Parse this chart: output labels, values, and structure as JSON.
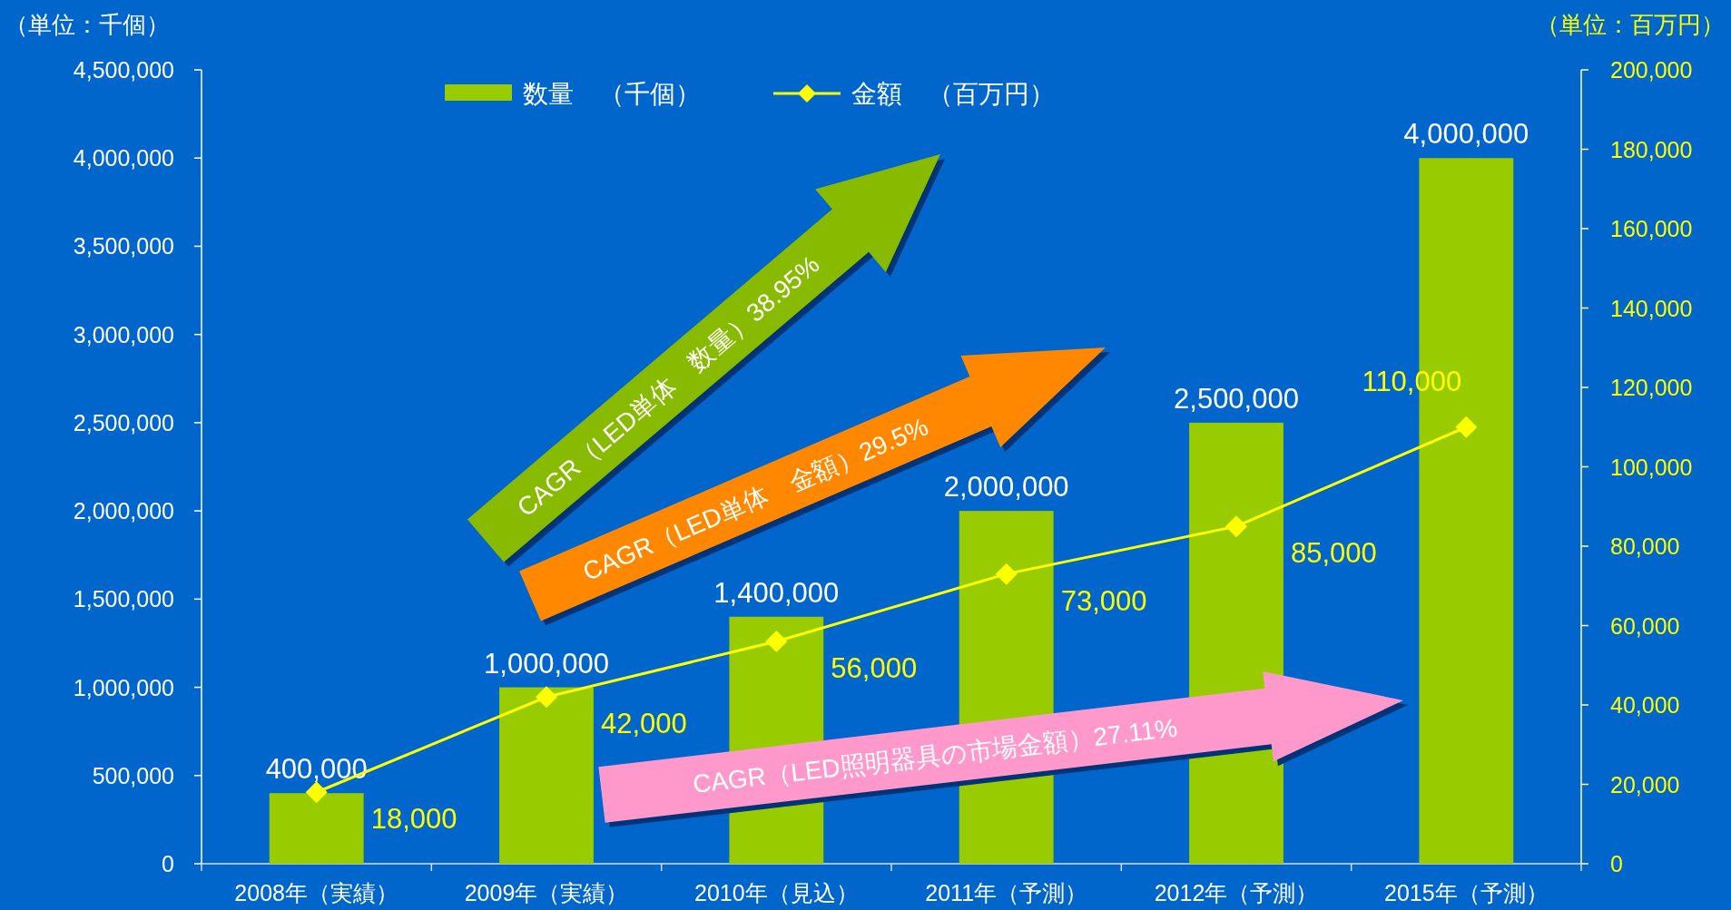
{
  "chart_data": {
    "type": "bar",
    "ylabel": "（単位：千個）",
    "y2label": "（単位：百万円）",
    "categories": [
      "2008年（実績）",
      "2009年（実績）",
      "2010年（見込）",
      "2011年（予測）",
      "2012年（予測）",
      "2015年（予測）"
    ],
    "series": [
      {
        "name": "数量　（千個）",
        "color": "#99cc00",
        "values": [
          400000,
          1000000,
          1400000,
          2000000,
          2500000,
          4000000
        ],
        "value_labels": [
          "400,000",
          "1,000,000",
          "1,400,000",
          "2,000,000",
          "2,500,000",
          "4,000,000"
        ]
      },
      {
        "name": "金額　（百万円）",
        "type": "line",
        "axis": "y2",
        "color": "#ffff00",
        "values": [
          18000,
          42000,
          56000,
          73000,
          85000,
          110000
        ],
        "value_labels": [
          "18,000",
          "42,000",
          "56,000",
          "73,000",
          "85,000",
          "110,000"
        ]
      }
    ],
    "ylim": [
      0,
      4500000
    ],
    "yticks": [
      {
        "value": 0,
        "label": "0"
      },
      {
        "value": 500000,
        "label": "500,000"
      },
      {
        "value": 1000000,
        "label": "1,000,000"
      },
      {
        "value": 1500000,
        "label": "1,500,000"
      },
      {
        "value": 2000000,
        "label": "2,000,000"
      },
      {
        "value": 2500000,
        "label": "2,500,000"
      },
      {
        "value": 3000000,
        "label": "3,000,000"
      },
      {
        "value": 3500000,
        "label": "3,500,000"
      },
      {
        "value": 4000000,
        "label": "4,000,000"
      },
      {
        "value": 4500000,
        "label": "4,500,000"
      }
    ],
    "y2lim": [
      0,
      200000
    ],
    "y2ticks": [
      {
        "value": 0,
        "label": "0"
      },
      {
        "value": 20000,
        "label": "20,000"
      },
      {
        "value": 40000,
        "label": "40,000"
      },
      {
        "value": 60000,
        "label": "60,000"
      },
      {
        "value": 80000,
        "label": "80,000"
      },
      {
        "value": 100000,
        "label": "100,000"
      },
      {
        "value": 120000,
        "label": "120,000"
      },
      {
        "value": 140000,
        "label": "140,000"
      },
      {
        "value": 160000,
        "label": "160,000"
      },
      {
        "value": 180000,
        "label": "180,000"
      },
      {
        "value": 200000,
        "label": "200,000"
      }
    ],
    "annotations": [
      "CAGR（LED単体　数量）38.95%",
      "CAGR（LED単体　金額）29.5%",
      "CAGR（LED照明器具の市場金額）27.11%"
    ],
    "legend": "top",
    "marker": "diamond",
    "grid": false
  }
}
